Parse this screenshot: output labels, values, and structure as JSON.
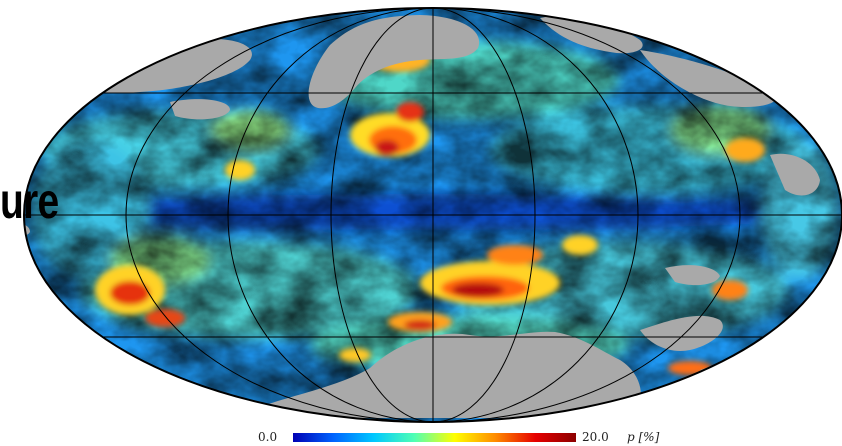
{
  "overlay_text": "ure",
  "colorbar": {
    "min_label": "0.0",
    "max_label": "20.0",
    "quantity_label": "p   [%]",
    "colors": [
      "#0000b4",
      "#0064ff",
      "#00c8ff",
      "#50ffb4",
      "#ffff00",
      "#ff8c00",
      "#e60000",
      "#8c0000"
    ]
  },
  "map": {
    "projection": "Mollweide",
    "masked_color": "#a9a9a9",
    "grid_color": "#000000"
  }
}
